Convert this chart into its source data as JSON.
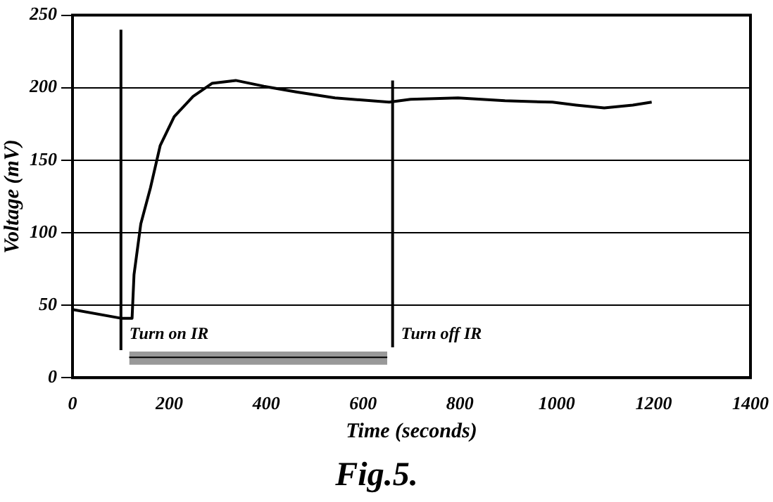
{
  "chart_data": {
    "type": "line",
    "title": "Fig.5.",
    "xlabel": "Time (seconds)",
    "ylabel": "Voltage (mV)",
    "xlim": [
      0,
      1400
    ],
    "xticks": [
      0,
      200,
      400,
      600,
      800,
      1000,
      1200,
      1400
    ],
    "ylim": [
      0,
      250
    ],
    "yticks": [
      0,
      50,
      100,
      150,
      200,
      250
    ],
    "grid": "y",
    "marker": "none",
    "line_style": "solid",
    "series": [
      {
        "color": "#000000",
        "x": [
          0,
          100,
          123,
          127,
          141,
          161,
          181,
          210,
          249,
          288,
          337,
          395,
          464,
          542,
          654,
          698,
          796,
          893,
          991,
          1040,
          1098,
          1157,
          1196
        ],
        "values": [
          47,
          41,
          41,
          71,
          106,
          131,
          160,
          180,
          194,
          203,
          205,
          201,
          197,
          193,
          190,
          192,
          193,
          191,
          190,
          188,
          186,
          188,
          190
        ]
      },
      {
        "color": "#000000",
        "x": [
          117,
          650
        ],
        "values": [
          14,
          14
        ],
        "lower": [
          9,
          9
        ],
        "upper": [
          18,
          18
        ]
      },
      {
        "color": "#000000",
        "x": [
          100,
          100
        ],
        "values": [
          19,
          240
        ]
      },
      {
        "color": "#000000",
        "x": [
          661,
          661
        ],
        "values": [
          21,
          205
        ]
      }
    ],
    "annotations": [
      {
        "text": "Turn on IR",
        "x": 100,
        "y": 30
      },
      {
        "text": "Turn off IR",
        "x": 661,
        "y": 30
      }
    ]
  }
}
